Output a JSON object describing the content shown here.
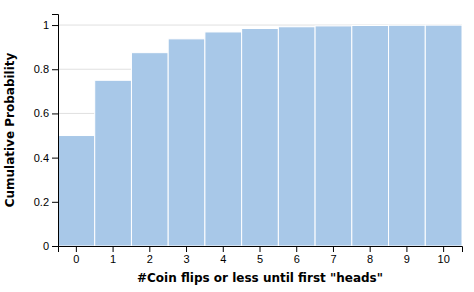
{
  "chart_data": {
    "type": "bar",
    "xlabel": "#Coin flips or less until first \"heads\"",
    "ylabel": "Cumulative Probability",
    "categories": [
      0,
      1,
      2,
      3,
      4,
      5,
      6,
      7,
      8,
      9,
      10
    ],
    "values": [
      0.5,
      0.75,
      0.875,
      0.9375,
      0.96875,
      0.984375,
      0.9921875,
      0.99609375,
      0.998046875,
      0.9990234375,
      0.99951171875
    ],
    "color": "#a8c8e8",
    "ylim": [
      0,
      1.05
    ],
    "yticks": [
      0,
      0.2,
      0.4,
      0.6,
      0.8,
      1
    ],
    "grid": true
  }
}
